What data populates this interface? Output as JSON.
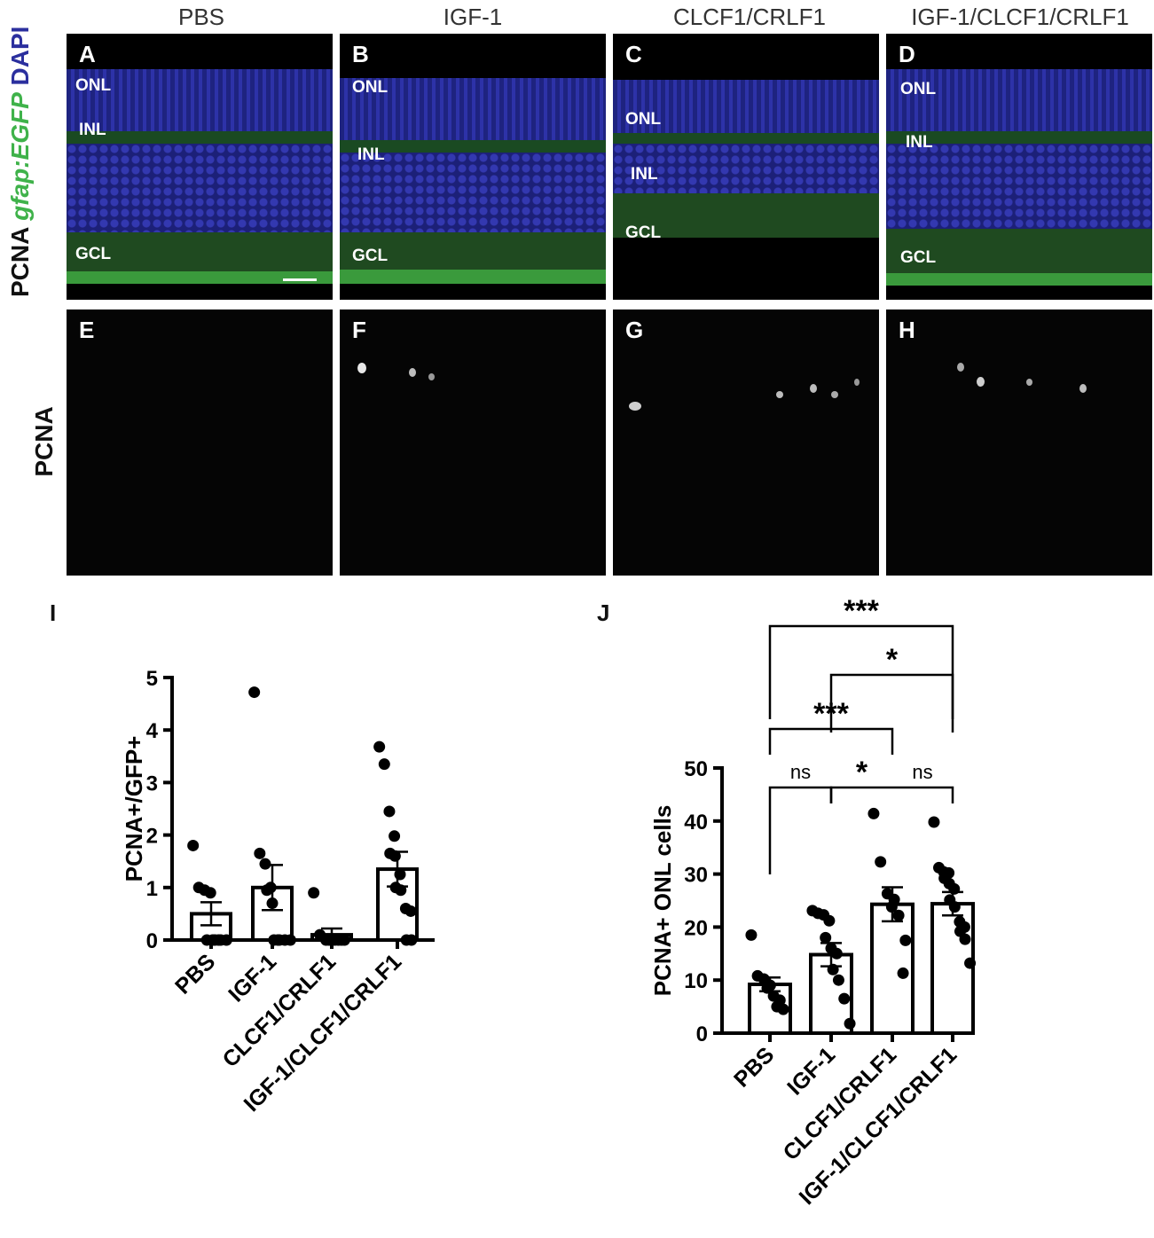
{
  "columns": [
    "PBS",
    "IGF-1",
    "CLCF1/CRLF1",
    "IGF-1/CLCF1/CRLF1"
  ],
  "row1_label": {
    "pcna": "PCNA",
    "gfap": "gfap:EGFP",
    "dapi": "DAPI"
  },
  "row2_label": "PCNA",
  "panels_top": [
    {
      "letter": "A",
      "onl": "ONL",
      "inl": "INL",
      "gcl": "GCL"
    },
    {
      "letter": "B",
      "onl": "ONL",
      "inl": "INL",
      "gcl": "GCL"
    },
    {
      "letter": "C",
      "onl": "ONL",
      "inl": "INL",
      "gcl": "GCL"
    },
    {
      "letter": "D",
      "onl": "ONL",
      "inl": "INL",
      "gcl": "GCL"
    }
  ],
  "panels_bottom": [
    {
      "letter": "E"
    },
    {
      "letter": "F"
    },
    {
      "letter": "G"
    },
    {
      "letter": "H"
    }
  ],
  "colors": {
    "dapi": "#2b2f9e",
    "gfp": "#3fb24a",
    "pcna": "#e8e8e8"
  },
  "chart_data": [
    {
      "panel": "I",
      "type": "bar",
      "categories": [
        "PBS",
        "IGF-1",
        "CLCF1/CRLF1",
        "IGF-1/CLCF1/CRLF1"
      ],
      "ylabel": "PCNA+/GFP+",
      "ylim": [
        0,
        5
      ],
      "yticks": [
        0,
        1,
        2,
        3,
        4,
        5
      ],
      "means": [
        0.5,
        1.0,
        0.1,
        1.35
      ],
      "sem": [
        0.22,
        0.43,
        0.12,
        0.33
      ],
      "points": [
        [
          1.8,
          1.0,
          0.95,
          0.9,
          0,
          0,
          0,
          0,
          0,
          0
        ],
        [
          4.72,
          1.65,
          1.45,
          1.0,
          0.95,
          0.7,
          0,
          0,
          0,
          0,
          0
        ],
        [
          0.9,
          0.1,
          0,
          0,
          0,
          0,
          0,
          0,
          0
        ],
        [
          3.68,
          3.35,
          2.45,
          1.98,
          1.65,
          1.6,
          1.25,
          1.0,
          0.95,
          0.6,
          0.55,
          0,
          0
        ]
      ]
    },
    {
      "panel": "J",
      "type": "bar",
      "categories": [
        "PBS",
        "IGF-1",
        "CLCF1/CRLF1",
        "IGF-1/CLCF1/CRLF1"
      ],
      "ylabel": "PCNA+ ONL cells",
      "ylim": [
        0,
        50
      ],
      "yticks": [
        0,
        10,
        20,
        30,
        40,
        50
      ],
      "means": [
        9.2,
        14.8,
        24.3,
        24.4
      ],
      "sem": [
        1.3,
        2.2,
        3.2,
        2.2
      ],
      "points": [
        [
          18.5,
          10.8,
          10.2,
          9.0,
          8.5,
          7.0,
          6.2,
          5.0,
          4.5
        ],
        [
          23.1,
          22.6,
          22.3,
          21.2,
          18.0,
          16.0,
          15.0,
          12.0,
          10.0,
          6.5,
          1.8
        ],
        [
          41.4,
          32.3,
          26.3,
          25.2,
          23.8,
          22.2,
          17.5,
          11.3
        ],
        [
          39.8,
          31.2,
          30.4,
          30.2,
          29.2,
          28.2,
          27.2,
          25.1,
          23.8,
          21.0,
          20.0,
          19.2,
          17.7,
          13.2
        ]
      ],
      "comparisons": [
        {
          "groups": [
            0,
            3
          ],
          "label": "***"
        },
        {
          "groups": [
            1,
            3
          ],
          "label": "*"
        },
        {
          "groups": [
            0,
            2
          ],
          "label": "***"
        },
        {
          "groups": [
            0,
            1
          ],
          "label": "ns"
        },
        {
          "groups": [
            1,
            2
          ],
          "label": "*"
        },
        {
          "groups": [
            2,
            3
          ],
          "label": "ns"
        }
      ]
    }
  ]
}
